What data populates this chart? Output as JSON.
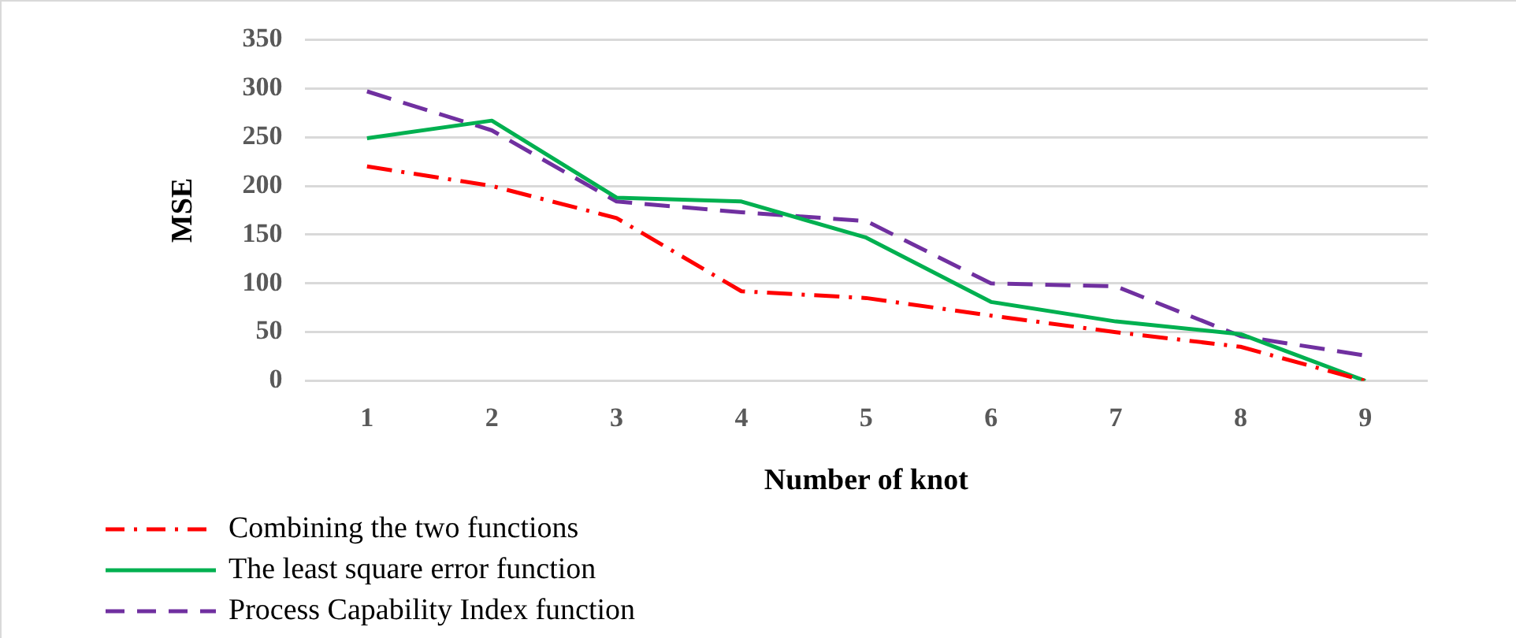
{
  "chart_data": {
    "type": "line",
    "xlabel": "Number of knot",
    "ylabel": "MSE",
    "categories": [
      "1",
      "2",
      "3",
      "4",
      "5",
      "6",
      "7",
      "8",
      "9"
    ],
    "series": [
      {
        "name": "Combining the two functions",
        "color": "#ff0000",
        "line_style": "dashdot",
        "values": [
          220,
          200,
          167,
          92,
          85,
          67,
          50,
          35,
          0
        ]
      },
      {
        "name": "The least square error function",
        "color": "#00b050",
        "line_style": "solid",
        "values": [
          249,
          267,
          188,
          184,
          147,
          81,
          61,
          48,
          0
        ]
      },
      {
        "name": "Process Capability Index function",
        "color": "#7030a0",
        "line_style": "dashed",
        "values": [
          297,
          257,
          184,
          173,
          164,
          100,
          97,
          46,
          26
        ]
      }
    ],
    "ylim": [
      0,
      350
    ],
    "yticks": [
      0,
      50,
      100,
      150,
      200,
      250,
      300,
      350
    ],
    "grid": "y",
    "legend": "bottom left",
    "marker": "none"
  }
}
